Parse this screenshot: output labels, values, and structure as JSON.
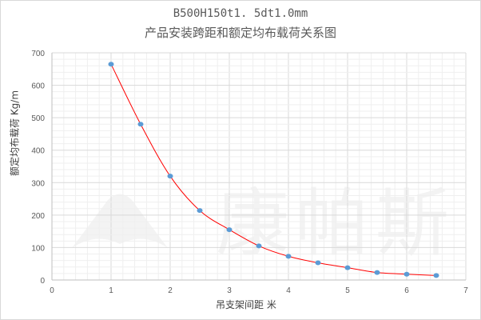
{
  "chart_data": {
    "type": "scatter",
    "title": "B500H150t1. 5dt1.0mm",
    "subtitle": "产品安装跨距和额定均布载荷关系图",
    "xlabel": "吊支架间距  米",
    "ylabel": "额定均布载荷  Kg/m",
    "xlim": [
      0,
      7
    ],
    "ylim": [
      0,
      700
    ],
    "xticks": [
      0,
      1,
      2,
      3,
      4,
      5,
      6,
      7
    ],
    "yticks": [
      0,
      100,
      200,
      300,
      400,
      500,
      600,
      700
    ],
    "grid": true,
    "legend": "none",
    "x": [
      1,
      1.5,
      2,
      2.5,
      3,
      3.5,
      4,
      4.5,
      5,
      5.5,
      6,
      6.5
    ],
    "y": [
      665,
      480,
      320,
      214,
      155,
      105,
      73,
      53,
      38,
      23,
      18,
      14
    ],
    "point_color": "#5b9bd5",
    "trendline": true,
    "trendline_color": "#ff0000"
  },
  "watermark": "康帕斯"
}
